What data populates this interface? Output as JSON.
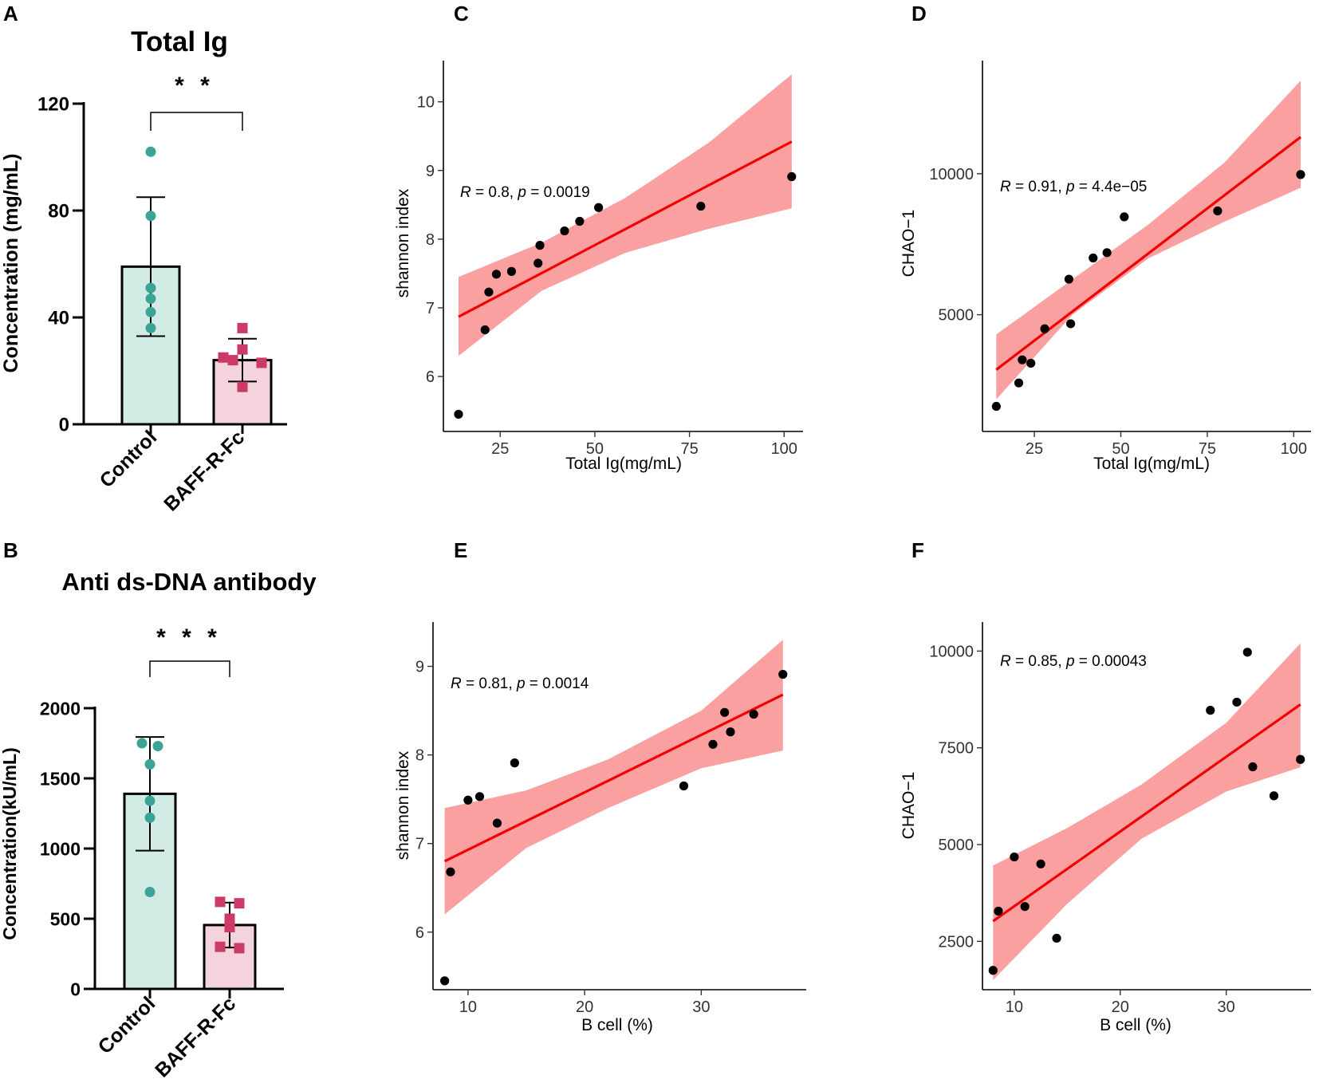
{
  "chart_data": [
    {
      "panel": "A",
      "type": "bar",
      "title": "Total Ig",
      "ylabel": "Concentration (mg/mL)",
      "categories": [
        "Control",
        "BAFF-R-Fc"
      ],
      "values": [
        59,
        24
      ],
      "error_sd": [
        26,
        8
      ],
      "ylim": [
        0,
        120
      ],
      "yticks": [
        0,
        40,
        80,
        120
      ],
      "points": [
        [
          102,
          78,
          51,
          47,
          42,
          36
        ],
        [
          36,
          28,
          25,
          24,
          23,
          14
        ]
      ],
      "significance": "* *",
      "colors": {
        "Control": "#d2ebe5",
        "BAFF-R-Fc": "#f4d3dc",
        "Control_points": "#3aa597",
        "BAFF-R-Fc_points": "#cc3b66"
      }
    },
    {
      "panel": "B",
      "type": "bar",
      "title": "Anti ds-DNA antibody",
      "ylabel": "Concentration(kU/mL)",
      "categories": [
        "Control",
        "BAFF-R-Fc"
      ],
      "values": [
        1390,
        455
      ],
      "error_sd": [
        405,
        160
      ],
      "ylim": [
        0,
        2000
      ],
      "yticks": [
        0,
        500,
        1000,
        1500,
        2000
      ],
      "points": [
        [
          1750,
          1730,
          1600,
          1340,
          1220,
          690
        ],
        [
          620,
          610,
          500,
          440,
          300,
          290
        ]
      ],
      "significance": "* * *",
      "colors": {
        "Control": "#d2ebe5",
        "BAFF-R-Fc": "#f4d3dc",
        "Control_points": "#3aa597",
        "BAFF-R-Fc_points": "#cc3b66"
      }
    },
    {
      "panel": "C",
      "type": "scatter",
      "xlabel": "Total Ig(mg/mL)",
      "ylabel": "shannon index",
      "xlim": [
        10,
        105
      ],
      "ylim": [
        5.2,
        10.6
      ],
      "xticks": [
        25,
        50,
        75,
        100
      ],
      "yticks": [
        6,
        7,
        8,
        9,
        10
      ],
      "annotation": {
        "r": "R",
        "r_text": " = 0.8, ",
        "p": "p",
        "p_text": " = 0.0019"
      },
      "x": [
        14,
        21,
        22,
        24,
        28,
        35,
        35.5,
        42,
        46,
        51,
        78,
        102
      ],
      "y": [
        5.45,
        6.68,
        7.23,
        7.49,
        7.53,
        7.65,
        7.91,
        8.12,
        8.26,
        8.46,
        8.48,
        8.91
      ],
      "fit": {
        "x": [
          14,
          102
        ],
        "y": [
          6.87,
          9.42
        ]
      },
      "band": {
        "x": [
          14,
          36,
          58,
          80,
          102
        ],
        "upper": [
          7.45,
          7.95,
          8.6,
          9.4,
          10.4
        ],
        "lower": [
          6.3,
          7.25,
          7.8,
          8.15,
          8.45
        ]
      },
      "colors": {
        "line": "#f00000",
        "band": "#f98f8f",
        "point": "#000000"
      }
    },
    {
      "panel": "D",
      "type": "scatter",
      "xlabel": "Total Ig(mg/mL)",
      "ylabel": "CHAO−1",
      "xlim": [
        10,
        105
      ],
      "ylim": [
        860,
        14010
      ],
      "xticks": [
        25,
        50,
        75,
        100
      ],
      "yticks": [
        5000,
        10000
      ],
      "annotation": {
        "r": "R",
        "r_text": " = 0.91, ",
        "p": "p",
        "p_text": " = 4.4e−05"
      },
      "x": [
        14,
        20.5,
        21.5,
        24,
        28,
        35,
        35.5,
        42,
        46,
        51,
        78,
        102
      ],
      "y": [
        1750,
        2580,
        3400,
        3280,
        4500,
        6260,
        4680,
        7010,
        7200,
        8470,
        8680,
        9970
      ],
      "fit": {
        "x": [
          14,
          102
        ],
        "y": [
          3050,
          11300
        ]
      },
      "band": {
        "x": [
          14,
          36,
          58,
          80,
          102
        ],
        "upper": [
          4300,
          6250,
          8200,
          10400,
          13300
        ],
        "lower": [
          2000,
          5000,
          7000,
          8300,
          9500
        ]
      },
      "colors": {
        "line": "#f00000",
        "band": "#f98f8f",
        "point": "#000000"
      }
    },
    {
      "panel": "E",
      "type": "scatter",
      "xlabel": "B cell (%)",
      "ylabel": "shannon index",
      "xlim": [
        7,
        39
      ],
      "ylim": [
        5.35,
        9.5
      ],
      "xticks": [
        10,
        20,
        30
      ],
      "yticks": [
        6,
        7,
        8,
        9
      ],
      "annotation": {
        "r": "R",
        "r_text": " = 0.81, ",
        "p": "p",
        "p_text": " = 0.0014"
      },
      "x": [
        8,
        8.5,
        10,
        11,
        12.5,
        14,
        28.5,
        31,
        32,
        32.5,
        34.5,
        37
      ],
      "y": [
        5.45,
        6.68,
        7.49,
        7.53,
        7.23,
        7.91,
        7.65,
        8.12,
        8.48,
        8.26,
        8.46,
        8.91
      ],
      "fit": {
        "x": [
          8,
          37
        ],
        "y": [
          6.8,
          8.68
        ]
      },
      "band": {
        "x": [
          8,
          15,
          22,
          30,
          37
        ],
        "upper": [
          7.4,
          7.6,
          7.95,
          8.5,
          9.3
        ],
        "lower": [
          6.2,
          6.95,
          7.4,
          7.85,
          8.05
        ]
      },
      "colors": {
        "line": "#f00000",
        "band": "#f98f8f",
        "point": "#000000"
      }
    },
    {
      "panel": "F",
      "type": "scatter",
      "xlabel": "B cell (%)",
      "ylabel": "CHAO−1",
      "xlim": [
        7,
        38
      ],
      "ylim": [
        1250,
        10750
      ],
      "xticks": [
        10,
        20,
        30
      ],
      "yticks": [
        2500,
        5000,
        7500,
        10000
      ],
      "annotation": {
        "r": "R",
        "r_text": " = 0.85, ",
        "p": "p",
        "p_text": " = 0.00043"
      },
      "x": [
        8,
        8.5,
        10,
        11,
        12.5,
        14,
        28.5,
        31,
        32,
        32.5,
        34.5,
        37
      ],
      "y": [
        1750,
        3280,
        4680,
        3400,
        4500,
        2580,
        8470,
        8680,
        9970,
        7010,
        6260,
        7200
      ],
      "fit": {
        "x": [
          8,
          37
        ],
        "y": [
          3020,
          8620
        ]
      },
      "band": {
        "x": [
          8,
          15,
          22,
          30,
          37
        ],
        "upper": [
          4460,
          5430,
          6550,
          8150,
          10200
        ],
        "lower": [
          1500,
          3470,
          5150,
          6370,
          7000
        ]
      },
      "colors": {
        "line": "#f00000",
        "band": "#f98f8f",
        "point": "#000000"
      }
    }
  ]
}
